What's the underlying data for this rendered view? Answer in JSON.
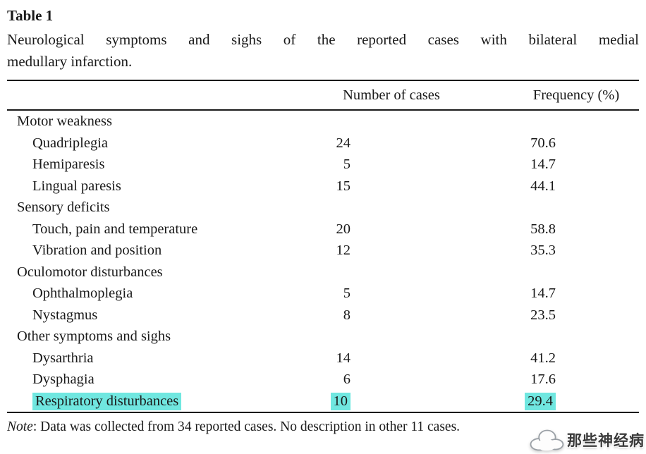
{
  "table": {
    "label": "Table 1",
    "caption": "Neurological symptoms and sighs of the reported cases with bilateral medial medullary infarction.",
    "caption_lines": [
      "Neurological symptoms and sighs of the reported cases with bilateral medial",
      "medullary infarction."
    ],
    "columns": [
      "",
      "Number of cases",
      "Frequency (%)"
    ],
    "rows": [
      {
        "type": "category",
        "label": "Motor weakness"
      },
      {
        "type": "item",
        "label": "Quadriplegia",
        "cases": "24",
        "freq": "70.6"
      },
      {
        "type": "item",
        "label": "Hemiparesis",
        "cases": "5",
        "freq": "14.7"
      },
      {
        "type": "item",
        "label": "Lingual paresis",
        "cases": "15",
        "freq": "44.1"
      },
      {
        "type": "category",
        "label": "Sensory deficits"
      },
      {
        "type": "item",
        "label": "Touch, pain and temperature",
        "cases": "20",
        "freq": "58.8"
      },
      {
        "type": "item",
        "label": "Vibration and position",
        "cases": "12",
        "freq": "35.3"
      },
      {
        "type": "category",
        "label": "Oculomotor disturbances"
      },
      {
        "type": "item",
        "label": "Ophthalmoplegia",
        "cases": "5",
        "freq": "14.7"
      },
      {
        "type": "item",
        "label": "Nystagmus",
        "cases": "8",
        "freq": "23.5"
      },
      {
        "type": "category",
        "label": "Other symptoms and sighs"
      },
      {
        "type": "item",
        "label": "Dysarthria",
        "cases": "14",
        "freq": "41.2"
      },
      {
        "type": "item",
        "label": "Dysphagia",
        "cases": "6",
        "freq": "17.6"
      },
      {
        "type": "item",
        "label": "Respiratory disturbances",
        "cases": "10",
        "freq": "29.4",
        "highlight": true
      }
    ],
    "note_label": "Note",
    "note_text": ": Data was collected from 34 reported cases. No description in other 11 cases."
  },
  "watermark": {
    "icon": "cloud-icon",
    "text": "那些神经病"
  },
  "colors": {
    "highlight": "#70e7e0",
    "text": "#1a1a1a",
    "rule": "#1a1a1a"
  }
}
